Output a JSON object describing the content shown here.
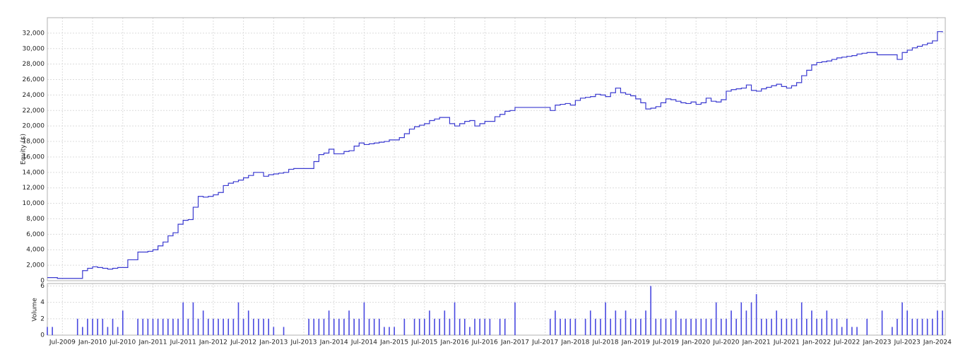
{
  "chart_data": [
    {
      "type": "line",
      "ylabel": "Equity ($)",
      "color": "#3a3ad0",
      "grid": true,
      "ylim": [
        0,
        34000
      ],
      "yticks": [
        0,
        {
          "value": 2000,
          "label": "2,000"
        },
        {
          "value": 4000,
          "label": "4,000"
        },
        {
          "value": 6000,
          "label": "6,000"
        },
        {
          "value": 8000,
          "label": "8,000"
        },
        {
          "value": 10000,
          "label": "10,000"
        },
        {
          "value": 12000,
          "label": "12,000"
        },
        {
          "value": 14000,
          "label": "14,000"
        },
        {
          "value": 16000,
          "label": "16,000"
        },
        {
          "value": 18000,
          "label": "18,000"
        },
        {
          "value": 20000,
          "label": "20,000"
        },
        {
          "value": 22000,
          "label": "22,000"
        },
        {
          "value": 24000,
          "label": "24,000"
        },
        {
          "value": 26000,
          "label": "26,000"
        },
        {
          "value": 28000,
          "label": "28,000"
        },
        {
          "value": 30000,
          "label": "30,000"
        },
        {
          "value": 32000,
          "label": "32,000"
        }
      ],
      "x": [
        "2009-04",
        "2009-05",
        "2009-06",
        "2009-07",
        "2009-08",
        "2009-09",
        "2009-10",
        "2009-11",
        "2009-12",
        "2010-01",
        "2010-02",
        "2010-03",
        "2010-04",
        "2010-05",
        "2010-06",
        "2010-07",
        "2010-08",
        "2010-09",
        "2010-10",
        "2010-11",
        "2010-12",
        "2011-01",
        "2011-02",
        "2011-03",
        "2011-04",
        "2011-05",
        "2011-06",
        "2011-07",
        "2011-08",
        "2011-09",
        "2011-10",
        "2011-11",
        "2011-12",
        "2012-01",
        "2012-02",
        "2012-03",
        "2012-04",
        "2012-05",
        "2012-06",
        "2012-07",
        "2012-08",
        "2012-09",
        "2012-10",
        "2012-11",
        "2012-12",
        "2013-01",
        "2013-02",
        "2013-03",
        "2013-04",
        "2013-05",
        "2013-06",
        "2013-07",
        "2013-08",
        "2013-09",
        "2013-10",
        "2013-11",
        "2013-12",
        "2014-01",
        "2014-02",
        "2014-03",
        "2014-04",
        "2014-05",
        "2014-06",
        "2014-07",
        "2014-08",
        "2014-09",
        "2014-10",
        "2014-11",
        "2014-12",
        "2015-01",
        "2015-02",
        "2015-03",
        "2015-04",
        "2015-05",
        "2015-06",
        "2015-07",
        "2015-08",
        "2015-09",
        "2015-10",
        "2015-11",
        "2015-12",
        "2016-01",
        "2016-02",
        "2016-03",
        "2016-04",
        "2016-05",
        "2016-06",
        "2016-07",
        "2016-08",
        "2016-09",
        "2016-10",
        "2016-11",
        "2016-12",
        "2017-01",
        "2017-02",
        "2017-03",
        "2017-04",
        "2017-05",
        "2017-06",
        "2017-07",
        "2017-08",
        "2017-09",
        "2017-10",
        "2017-11",
        "2017-12",
        "2018-01",
        "2018-02",
        "2018-03",
        "2018-04",
        "2018-05",
        "2018-06",
        "2018-07",
        "2018-08",
        "2018-09",
        "2018-10",
        "2018-11",
        "2018-12",
        "2019-01",
        "2019-02",
        "2019-03",
        "2019-04",
        "2019-05",
        "2019-06",
        "2019-07",
        "2019-08",
        "2019-09",
        "2019-10",
        "2019-11",
        "2019-12",
        "2020-01",
        "2020-02",
        "2020-03",
        "2020-04",
        "2020-05",
        "2020-06",
        "2020-07",
        "2020-08",
        "2020-09",
        "2020-10",
        "2020-11",
        "2020-12",
        "2021-01",
        "2021-02",
        "2021-03",
        "2021-04",
        "2021-05",
        "2021-06",
        "2021-07",
        "2021-08",
        "2021-09",
        "2021-10",
        "2021-11",
        "2021-12",
        "2022-01",
        "2022-02",
        "2022-03",
        "2022-04",
        "2022-05",
        "2022-06",
        "2022-07",
        "2022-08",
        "2022-09",
        "2022-10",
        "2022-11",
        "2022-12",
        "2023-01",
        "2023-02",
        "2023-03",
        "2023-04",
        "2023-05",
        "2023-06",
        "2023-07",
        "2023-08",
        "2023-09",
        "2023-10",
        "2023-11",
        "2023-12",
        "2024-01",
        "2024-02"
      ],
      "values": [
        400,
        400,
        300,
        300,
        300,
        300,
        300,
        1300,
        1600,
        1800,
        1700,
        1600,
        1500,
        1600,
        1700,
        1700,
        2700,
        2700,
        3700,
        3700,
        3800,
        4000,
        4500,
        5000,
        5800,
        6200,
        7300,
        7800,
        7900,
        9500,
        10900,
        10800,
        10900,
        11100,
        11400,
        12300,
        12600,
        12800,
        13000,
        13300,
        13600,
        14000,
        14000,
        13500,
        13700,
        13800,
        13900,
        14000,
        14400,
        14500,
        14500,
        14500,
        14500,
        15400,
        16300,
        16500,
        17000,
        16400,
        16400,
        16700,
        16800,
        17400,
        17800,
        17600,
        17700,
        17800,
        17900,
        18000,
        18200,
        18200,
        18500,
        19000,
        19600,
        19900,
        20100,
        20300,
        20700,
        20900,
        21100,
        21100,
        20300,
        20000,
        20300,
        20600,
        20700,
        20000,
        20300,
        20600,
        20600,
        21200,
        21500,
        21900,
        22000,
        22400,
        22400,
        22400,
        22400,
        22400,
        22400,
        22400,
        22000,
        22700,
        22800,
        22900,
        22700,
        23300,
        23600,
        23700,
        23800,
        24100,
        24000,
        23800,
        24300,
        24900,
        24300,
        24100,
        23900,
        23500,
        23000,
        22200,
        22300,
        22500,
        23000,
        23500,
        23400,
        23200,
        23000,
        22900,
        23100,
        22800,
        23000,
        23600,
        23200,
        23100,
        23400,
        24500,
        24700,
        24800,
        24900,
        25300,
        24600,
        24500,
        24800,
        25000,
        25200,
        25400,
        25100,
        24900,
        25200,
        25600,
        26500,
        27200,
        27900,
        28200,
        28300,
        28400,
        28600,
        28800,
        28900,
        29000,
        29100,
        29300,
        29400,
        29500,
        29500,
        29200,
        29200,
        29200,
        29200,
        28600,
        29500,
        29800,
        30100,
        30300,
        30500,
        30700,
        31000,
        32200,
        32100
      ]
    },
    {
      "type": "bar",
      "ylabel": "Volume",
      "color": "#4848e0",
      "grid": true,
      "ylim": [
        0,
        6.3
      ],
      "yticks": [
        0,
        2,
        4,
        6
      ],
      "x": [
        "2009-04",
        "2009-05",
        "2009-06",
        "2009-07",
        "2009-08",
        "2009-09",
        "2009-10",
        "2009-11",
        "2009-12",
        "2010-01",
        "2010-02",
        "2010-03",
        "2010-04",
        "2010-05",
        "2010-06",
        "2010-07",
        "2010-08",
        "2010-09",
        "2010-10",
        "2010-11",
        "2010-12",
        "2011-01",
        "2011-02",
        "2011-03",
        "2011-04",
        "2011-05",
        "2011-06",
        "2011-07",
        "2011-08",
        "2011-09",
        "2011-10",
        "2011-11",
        "2011-12",
        "2012-01",
        "2012-02",
        "2012-03",
        "2012-04",
        "2012-05",
        "2012-06",
        "2012-07",
        "2012-08",
        "2012-09",
        "2012-10",
        "2012-11",
        "2012-12",
        "2013-01",
        "2013-02",
        "2013-03",
        "2013-04",
        "2013-05",
        "2013-06",
        "2013-07",
        "2013-08",
        "2013-09",
        "2013-10",
        "2013-11",
        "2013-12",
        "2014-01",
        "2014-02",
        "2014-03",
        "2014-04",
        "2014-05",
        "2014-06",
        "2014-07",
        "2014-08",
        "2014-09",
        "2014-10",
        "2014-11",
        "2014-12",
        "2015-01",
        "2015-02",
        "2015-03",
        "2015-04",
        "2015-05",
        "2015-06",
        "2015-07",
        "2015-08",
        "2015-09",
        "2015-10",
        "2015-11",
        "2015-12",
        "2016-01",
        "2016-02",
        "2016-03",
        "2016-04",
        "2016-05",
        "2016-06",
        "2016-07",
        "2016-08",
        "2016-09",
        "2016-10",
        "2016-11",
        "2016-12",
        "2017-01",
        "2017-02",
        "2017-03",
        "2017-04",
        "2017-05",
        "2017-06",
        "2017-07",
        "2017-08",
        "2017-09",
        "2017-10",
        "2017-11",
        "2017-12",
        "2018-01",
        "2018-02",
        "2018-03",
        "2018-04",
        "2018-05",
        "2018-06",
        "2018-07",
        "2018-08",
        "2018-09",
        "2018-10",
        "2018-11",
        "2018-12",
        "2019-01",
        "2019-02",
        "2019-03",
        "2019-04",
        "2019-05",
        "2019-06",
        "2019-07",
        "2019-08",
        "2019-09",
        "2019-10",
        "2019-11",
        "2019-12",
        "2020-01",
        "2020-02",
        "2020-03",
        "2020-04",
        "2020-05",
        "2020-06",
        "2020-07",
        "2020-08",
        "2020-09",
        "2020-10",
        "2020-11",
        "2020-12",
        "2021-01",
        "2021-02",
        "2021-03",
        "2021-04",
        "2021-05",
        "2021-06",
        "2021-07",
        "2021-08",
        "2021-09",
        "2021-10",
        "2021-11",
        "2021-12",
        "2022-01",
        "2022-02",
        "2022-03",
        "2022-04",
        "2022-05",
        "2022-06",
        "2022-07",
        "2022-08",
        "2022-09",
        "2022-10",
        "2022-11",
        "2022-12",
        "2023-01",
        "2023-02",
        "2023-03",
        "2023-04",
        "2023-05",
        "2023-06",
        "2023-07",
        "2023-08",
        "2023-09",
        "2023-10",
        "2023-11",
        "2023-12",
        "2024-01",
        "2024-02"
      ],
      "values": [
        1,
        1,
        0,
        0,
        0,
        0,
        2,
        1,
        2,
        2,
        2,
        2,
        1,
        2,
        1,
        3,
        0,
        0,
        2,
        2,
        2,
        2,
        2,
        2,
        2,
        2,
        2,
        4,
        2,
        4,
        2,
        3,
        2,
        2,
        2,
        2,
        2,
        2,
        4,
        2,
        3,
        2,
        2,
        2,
        2,
        1,
        0,
        1,
        0,
        0,
        0,
        0,
        2,
        2,
        2,
        2,
        3,
        2,
        2,
        2,
        3,
        2,
        2,
        4,
        2,
        2,
        2,
        1,
        1,
        1,
        0,
        2,
        0,
        2,
        2,
        2,
        3,
        2,
        2,
        3,
        2,
        4,
        2,
        2,
        1,
        2,
        2,
        2,
        2,
        0,
        2,
        2,
        0,
        4,
        0,
        0,
        0,
        0,
        0,
        0,
        2,
        3,
        2,
        2,
        2,
        2,
        0,
        2,
        3,
        2,
        2,
        4,
        2,
        3,
        2,
        3,
        2,
        2,
        2,
        3,
        6,
        2,
        2,
        2,
        2,
        3,
        2,
        2,
        2,
        2,
        2,
        2,
        2,
        4,
        2,
        2,
        3,
        2,
        4,
        3,
        4,
        5,
        2,
        2,
        2,
        3,
        2,
        2,
        2,
        2,
        4,
        2,
        3,
        2,
        2,
        3,
        2,
        2,
        1,
        2,
        1,
        1,
        0,
        2,
        0,
        0,
        3,
        0,
        1,
        2,
        4,
        3,
        2,
        2,
        2,
        2,
        2,
        3,
        3
      ],
      "xticks": [
        {
          "value": "2009-07",
          "label": "Jul-2009"
        },
        {
          "value": "2010-01",
          "label": "Jan-2010"
        },
        {
          "value": "2010-07",
          "label": "Jul-2010"
        },
        {
          "value": "2011-01",
          "label": "Jan-2011"
        },
        {
          "value": "2011-07",
          "label": "Jul-2011"
        },
        {
          "value": "2012-01",
          "label": "Jan-2012"
        },
        {
          "value": "2012-07",
          "label": "Jul-2012"
        },
        {
          "value": "2013-01",
          "label": "Jan-2013"
        },
        {
          "value": "2013-07",
          "label": "Jul-2013"
        },
        {
          "value": "2014-01",
          "label": "Jan-2014"
        },
        {
          "value": "2014-07",
          "label": "Jul-2014"
        },
        {
          "value": "2015-01",
          "label": "Jan-2015"
        },
        {
          "value": "2015-07",
          "label": "Jul-2015"
        },
        {
          "value": "2016-01",
          "label": "Jan-2016"
        },
        {
          "value": "2016-07",
          "label": "Jul-2016"
        },
        {
          "value": "2017-01",
          "label": "Jan-2017"
        },
        {
          "value": "2017-07",
          "label": "Jul-2017"
        },
        {
          "value": "2018-01",
          "label": "Jan-2018"
        },
        {
          "value": "2018-07",
          "label": "Jul-2018"
        },
        {
          "value": "2019-01",
          "label": "Jan-2019"
        },
        {
          "value": "2019-07",
          "label": "Jul-2019"
        },
        {
          "value": "2020-01",
          "label": "Jan-2020"
        },
        {
          "value": "2020-07",
          "label": "Jul-2020"
        },
        {
          "value": "2021-01",
          "label": "Jan-2021"
        },
        {
          "value": "2021-07",
          "label": "Jul-2021"
        },
        {
          "value": "2022-01",
          "label": "Jan-2022"
        },
        {
          "value": "2022-07",
          "label": "Jul-2022"
        },
        {
          "value": "2023-01",
          "label": "Jan-2023"
        },
        {
          "value": "2023-07",
          "label": "Jul-2023"
        },
        {
          "value": "2024-01",
          "label": "Jan-2024"
        }
      ]
    }
  ]
}
